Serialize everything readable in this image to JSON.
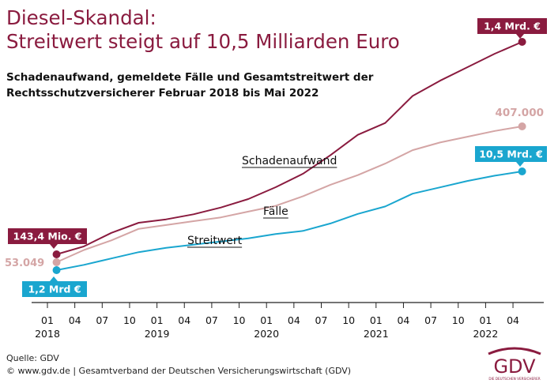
{
  "title_line1": "Diesel-Skandal:",
  "title_line2": "Streitwert steigt auf 10,5 Milliarden Euro",
  "subtitle_line1": "Schadenaufwand, gemeldete Fälle und Gesamtstreitwert der",
  "subtitle_line2": "Rechtsschutzversicherer Februar 2018 bis Mai 2022",
  "source_line1": "Quelle: GDV",
  "source_line2": "© www.gdv.de | Gesamtverband der Deutschen Versicherungswirtschaft (GDV)",
  "logo": {
    "text": "GDV",
    "tagline": "DIE DEUTSCHEN VERSICHERER",
    "color": "#8a1b3f"
  },
  "chart_data": {
    "type": "line",
    "title": "Streitwert steigt auf 10,5 Milliarden Euro",
    "x_ticks": [
      "01",
      "04",
      "07",
      "10",
      "01",
      "04",
      "07",
      "10",
      "01",
      "04",
      "07",
      "10",
      "01",
      "04",
      "07",
      "10",
      "01",
      "04"
    ],
    "year_labels": [
      "2018",
      "2019",
      "2020",
      "2021",
      "2022"
    ],
    "series": [
      {
        "name": "Schadenaufwand",
        "color": "#8a1b3f",
        "x": [
          "2018-02",
          "2018-05",
          "2018-08",
          "2018-11",
          "2019-02",
          "2019-05",
          "2019-08",
          "2019-11",
          "2020-02",
          "2020-05",
          "2020-08",
          "2020-11",
          "2021-02",
          "2021-05",
          "2021-08",
          "2021-11",
          "2022-02",
          "2022-05"
        ],
        "values": [
          0.143,
          0.19,
          0.27,
          0.33,
          0.35,
          0.38,
          0.42,
          0.47,
          0.54,
          0.62,
          0.73,
          0.85,
          0.92,
          1.08,
          1.17,
          1.25,
          1.33,
          1.4
        ],
        "unit": "Mrd. €",
        "start_label": "143,4 Mio. €",
        "end_label": "1,4 Mrd. €"
      },
      {
        "name": "Fälle",
        "color": "#d4a5a5",
        "x": [
          "2018-02",
          "2018-05",
          "2018-08",
          "2018-11",
          "2019-02",
          "2019-05",
          "2019-08",
          "2019-11",
          "2020-02",
          "2020-05",
          "2020-08",
          "2020-11",
          "2021-02",
          "2021-05",
          "2021-08",
          "2021-11",
          "2022-02",
          "2022-05"
        ],
        "values": [
          53049,
          85000,
          110000,
          140000,
          150000,
          160000,
          170000,
          185000,
          200000,
          225000,
          255000,
          280000,
          310000,
          345000,
          365000,
          380000,
          395000,
          407000
        ],
        "start_label": "53.049",
        "end_label": "407.000"
      },
      {
        "name": "Streitwert",
        "color": "#1aa6cf",
        "x": [
          "2018-02",
          "2018-05",
          "2018-08",
          "2018-11",
          "2019-02",
          "2019-05",
          "2019-08",
          "2019-11",
          "2020-02",
          "2020-05",
          "2020-08",
          "2020-11",
          "2021-02",
          "2021-05",
          "2021-08",
          "2021-11",
          "2022-02",
          "2022-05"
        ],
        "values": [
          1.2,
          1.7,
          2.3,
          2.9,
          3.3,
          3.6,
          3.9,
          4.2,
          4.6,
          4.9,
          5.6,
          6.5,
          7.2,
          8.4,
          9.0,
          9.6,
          10.1,
          10.5
        ],
        "unit": "Mrd. €",
        "start_label": "1,2 Mrd €",
        "end_label": "10,5 Mrd. €"
      }
    ]
  }
}
